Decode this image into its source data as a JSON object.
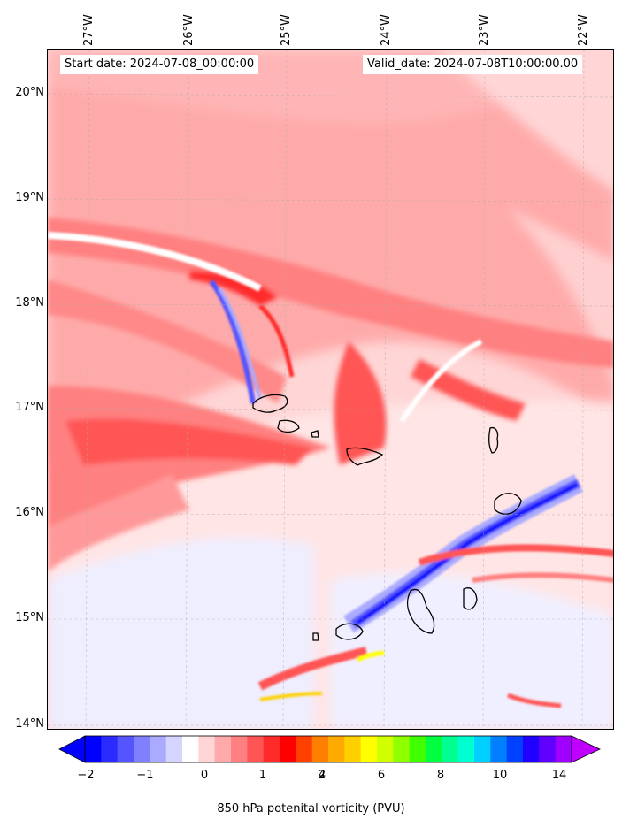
{
  "header": {
    "start_date": "Start date: 2024-07-08_00:00:00",
    "valid_date": "Valid_date: 2024-07-08T10:00:00.00"
  },
  "axes": {
    "longitudes": [
      "27°W",
      "26°W",
      "25°W",
      "24°W",
      "23°W",
      "22°W"
    ],
    "latitudes": [
      "20°N",
      "19°N",
      "18°N",
      "17°N",
      "16°N",
      "15°N",
      "14°N"
    ]
  },
  "colorbar": {
    "label": "850 hPa potenital vorticity (PVU)",
    "ticks": [
      "−2",
      "−1",
      "0",
      "1",
      "2",
      "4",
      "6",
      "8",
      "10",
      "14"
    ],
    "colors": [
      "#0000ff",
      "#2b2bff",
      "#5555ff",
      "#8080ff",
      "#aaaaff",
      "#d5d5ff",
      "#ffffff",
      "#ffd5d5",
      "#ffaaaa",
      "#ff8080",
      "#ff5555",
      "#ff2b2b",
      "#ff0000",
      "#ff4000",
      "#ff8000",
      "#ffaa00",
      "#ffd000",
      "#ffff00",
      "#d0ff00",
      "#90ff00",
      "#40ff00",
      "#00ff40",
      "#00ff90",
      "#00ffd0",
      "#00d0ff",
      "#0080ff",
      "#0040ff",
      "#2000ff",
      "#6000ff",
      "#a000ff"
    ],
    "under_color": "#0000ff",
    "over_color": "#c000ff"
  }
}
